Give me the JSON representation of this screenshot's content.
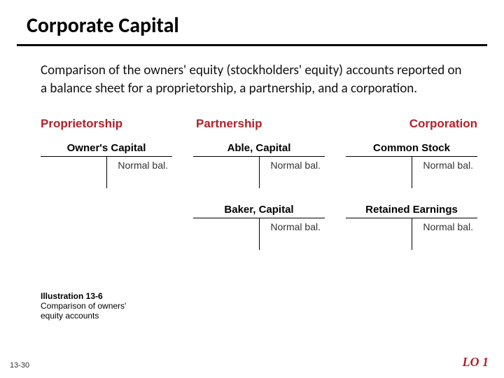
{
  "title": "Corporate Capital",
  "body": "Comparison of the owners'  equity (stockholders' equity) accounts reported on a balance sheet for a proprietorship, a partnership, and a corporation.",
  "colors": {
    "accent": "#b22028",
    "text": "#000000",
    "rule": "#000000",
    "background": "#ffffff"
  },
  "columns": [
    {
      "heading": "Proprietorship",
      "align": "left",
      "accounts": [
        {
          "title": "Owner's Capital",
          "normal": "Normal bal."
        }
      ]
    },
    {
      "heading": "Partnership",
      "align": "left",
      "accounts": [
        {
          "title": "Able, Capital",
          "normal": "Normal bal."
        },
        {
          "title": "Baker, Capital",
          "normal": "Normal bal."
        }
      ]
    },
    {
      "heading": "Corporation",
      "align": "right",
      "accounts": [
        {
          "title": "Common Stock",
          "normal": "Normal bal."
        },
        {
          "title": "Retained Earnings",
          "normal": "Normal bal."
        }
      ]
    }
  ],
  "caption": {
    "title": "Illustration 13-6",
    "body": "Comparison of owners'  equity accounts"
  },
  "slide_number": "13-30",
  "lo": "LO 1"
}
